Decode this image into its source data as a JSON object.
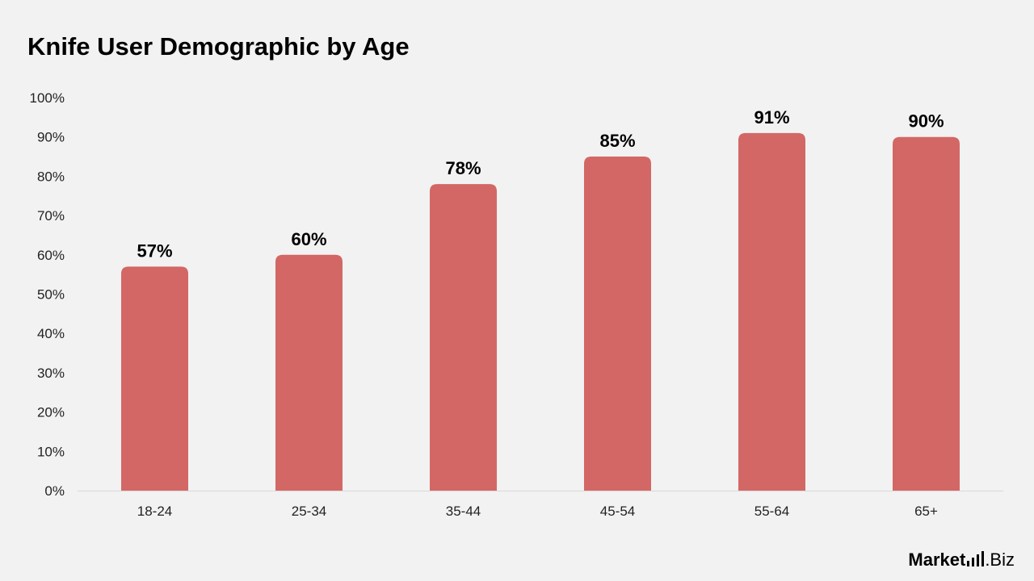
{
  "chart_data": {
    "type": "bar",
    "title": "Knife User Demographic by Age",
    "categories": [
      "18-24",
      "25-34",
      "35-44",
      "45-54",
      "55-64",
      "65+"
    ],
    "values": [
      57,
      60,
      78,
      85,
      91,
      90
    ],
    "value_labels": [
      "57%",
      "60%",
      "78%",
      "85%",
      "91%",
      "90%"
    ],
    "yticks": [
      "0%",
      "10%",
      "20%",
      "30%",
      "40%",
      "50%",
      "60%",
      "70%",
      "80%",
      "90%",
      "100%"
    ],
    "xlabel": "",
    "ylabel": "",
    "ylim": [
      0,
      100
    ],
    "grid": false,
    "legend": "none",
    "bar_color": "#d36765"
  },
  "brand": {
    "main": "Market",
    "suffix": ".Biz",
    "icon": "bar-chart-icon"
  }
}
